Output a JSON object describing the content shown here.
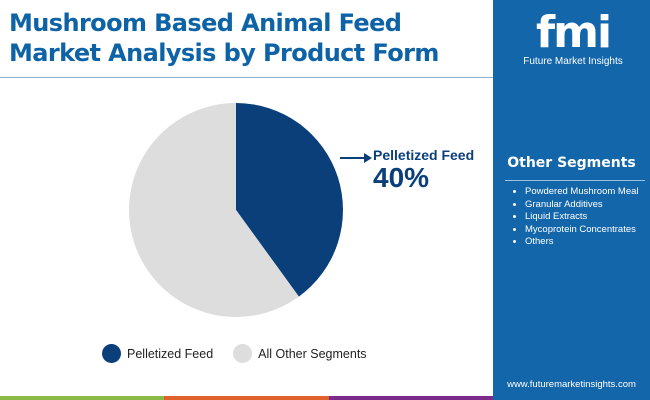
{
  "chart_data": {
    "type": "pie",
    "title": "Mushroom Based Animal Feed Market Analysis by Product Form",
    "slices": [
      {
        "name": "Pelletized Feed",
        "value": 40,
        "color": "#0b3f7a"
      },
      {
        "name": "All Other Segments",
        "value": 60,
        "color": "#dddddd"
      }
    ],
    "start_angle": "12 o'clock, clockwise",
    "legend_placement": "bottom",
    "callout": {
      "label": "Pelletized Feed",
      "value": "40%"
    }
  },
  "sidebar": {
    "logo_text": "fmi",
    "brand": "Future Market Insights",
    "segments_title": "Other Segments",
    "segments": [
      "Powdered Mushroom Meal",
      "Granular Additives",
      "Liquid Extracts",
      "Mycoprotein Concentrates",
      "Others"
    ],
    "url": "www.futuremarketinsights.com"
  },
  "colors": {
    "accent": "#1466aa",
    "bars": [
      "#8bbb46",
      "#e0622a",
      "#7b2b8a"
    ]
  }
}
